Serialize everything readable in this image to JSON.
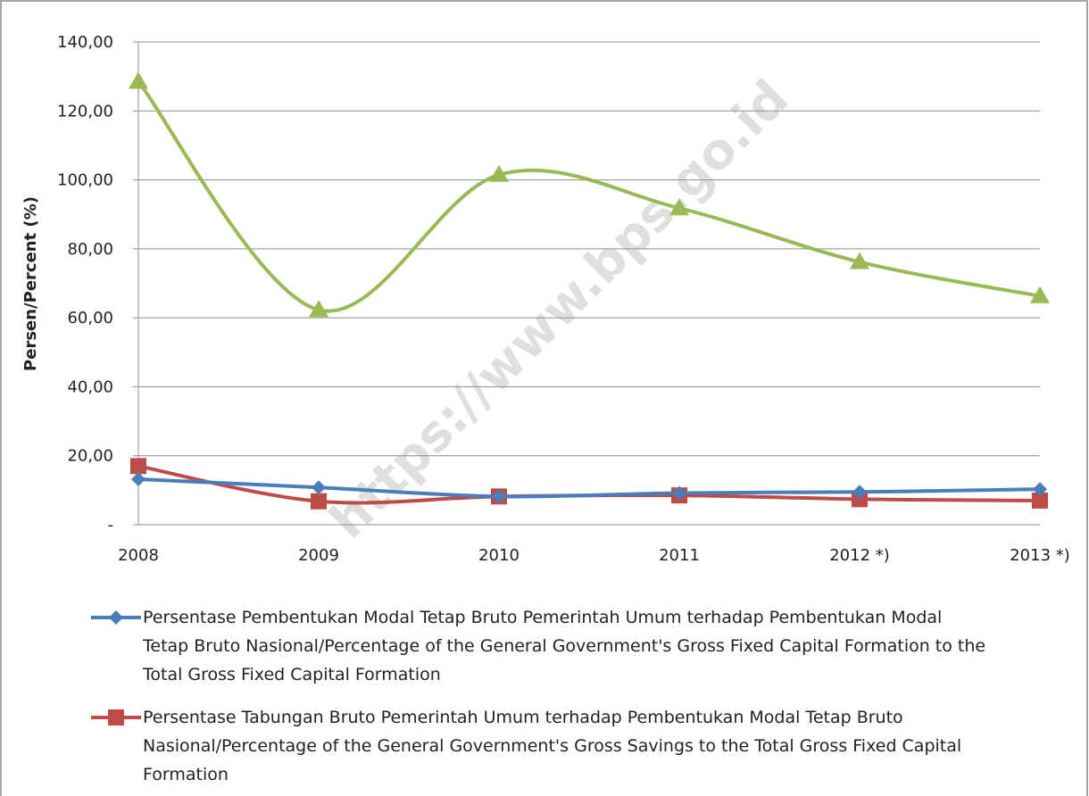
{
  "chart_data": {
    "type": "line",
    "y_label": "Persen/Percent (%)",
    "watermark": "https://www.bps.go.id",
    "categories": [
      "2008",
      "2009",
      "2010",
      "2011",
      "2012 *)",
      "2013 *)"
    ],
    "series": [
      {
        "name": "Persentase Pembentukan Modal Tetap Bruto Pemerintah Umum terhadap Pembentukan Modal Tetap Bruto Nasional/Percentage of the General Government's Gross Fixed Capital Formation to the Total Gross Fixed Capital Formation",
        "color": "#4a7ebb",
        "marker": "diamond",
        "values": [
          13.2,
          10.8,
          8.2,
          9.2,
          9.5,
          10.3
        ]
      },
      {
        "name": "Persentase Tabungan Bruto Pemerintah Umum terhadap Pembentukan Modal Tetap Bruto Nasional/Percentage of the General Government's Gross Savings to the Total Gross Fixed Capital Formation",
        "color": "#be4b48",
        "marker": "square",
        "values": [
          17.0,
          6.8,
          8.2,
          8.5,
          7.4,
          7.0
        ]
      },
      {
        "color": "#98b954",
        "marker": "triangle",
        "values": [
          128.5,
          62.3,
          101.5,
          91.8,
          76.2,
          66.3
        ]
      }
    ],
    "ylim": [
      0,
      140
    ],
    "yticks": [
      {
        "value": 0,
        "label": "-"
      },
      {
        "value": 20,
        "label": "20,00"
      },
      {
        "value": 40,
        "label": "40,00"
      },
      {
        "value": 60,
        "label": "60,00"
      },
      {
        "value": 80,
        "label": "80,00"
      },
      {
        "value": 100,
        "label": "100,00"
      },
      {
        "value": 120,
        "label": "120,00"
      },
      {
        "value": 140,
        "label": "140,00"
      }
    ],
    "grid": true,
    "smooth": true
  }
}
